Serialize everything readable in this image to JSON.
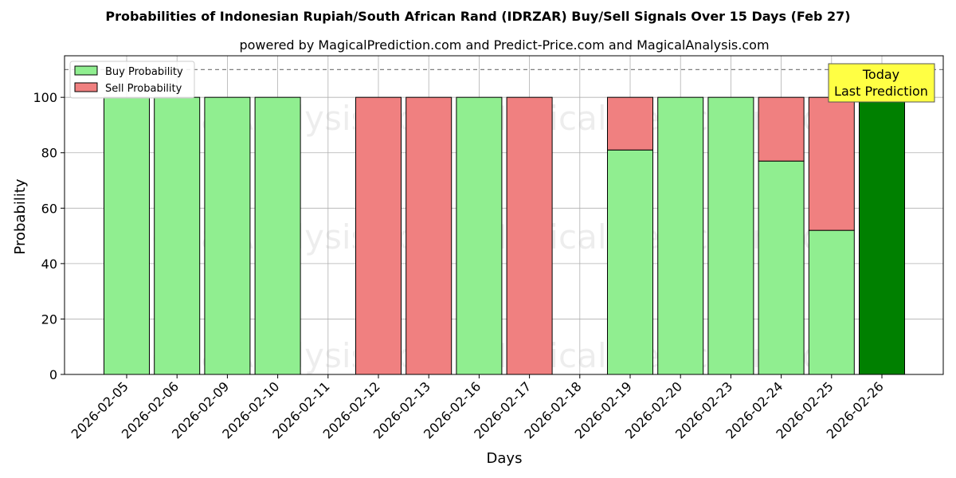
{
  "chart_data": {
    "type": "bar",
    "stacked": true,
    "title": "Probabilities of Indonesian Rupiah/South African Rand (IDRZAR) Buy/Sell Signals Over 15 Days (Feb 27)",
    "subtitle": "powered by MagicalPrediction.com and Predict-Price.com and MagicalAnalysis.com",
    "xlabel": "Days",
    "ylabel": "Probability",
    "ylim": [
      0,
      115
    ],
    "yticks": [
      0,
      20,
      40,
      60,
      80,
      100
    ],
    "reference_line": 110,
    "grid": true,
    "legend_position": "top-left",
    "categories": [
      "2026-02-05",
      "2026-02-06",
      "2026-02-09",
      "2026-02-10",
      "2026-02-11",
      "2026-02-12",
      "2026-02-13",
      "2026-02-16",
      "2026-02-17",
      "2026-02-18",
      "2026-02-19",
      "2026-02-20",
      "2026-02-23",
      "2026-02-24",
      "2026-02-25",
      "2026-02-26"
    ],
    "series": [
      {
        "name": "Buy Probability",
        "color": "#90ee90",
        "values": [
          100,
          100,
          100,
          100,
          0,
          0,
          0,
          100,
          0,
          0,
          81,
          100,
          100,
          77,
          52,
          100
        ]
      },
      {
        "name": "Sell Probability",
        "color": "#f08080",
        "values": [
          0,
          0,
          0,
          0,
          0,
          100,
          100,
          0,
          100,
          0,
          19,
          0,
          0,
          23,
          48,
          0
        ]
      }
    ],
    "highlight": {
      "index": 15,
      "color": "#008000"
    },
    "annotation": {
      "lines": [
        "Today",
        "Last Prediction"
      ],
      "background": "#ffff44"
    },
    "watermarks": [
      "MagicalAnalysis.com",
      "MagicalPrediction.com"
    ]
  }
}
